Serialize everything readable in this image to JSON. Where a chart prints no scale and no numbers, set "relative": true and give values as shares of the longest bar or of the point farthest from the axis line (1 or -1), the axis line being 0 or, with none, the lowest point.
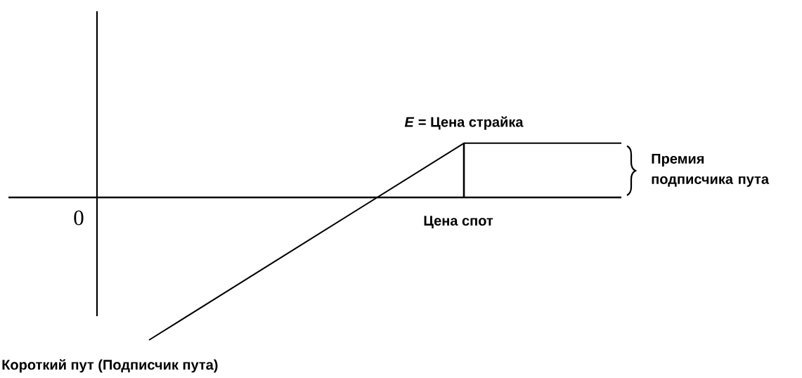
{
  "chart_data": {
    "type": "line",
    "relative": true,
    "marker": "none",
    "categories": [
      null,
      null,
      null,
      null
    ],
    "series": [
      {
        "name": "Короткий пут (Подписчик пута)",
        "color": "#000000",
        "values": [
          -1,
          -0.31,
          0.38,
          0.38
        ]
      }
    ],
    "xlabel": "Цена спот",
    "annotations": [
      "0",
      {
        "text": "*E* = Цена страйка",
        "y": 0.38
      },
      "Премия подписчика пута"
    ]
  }
}
